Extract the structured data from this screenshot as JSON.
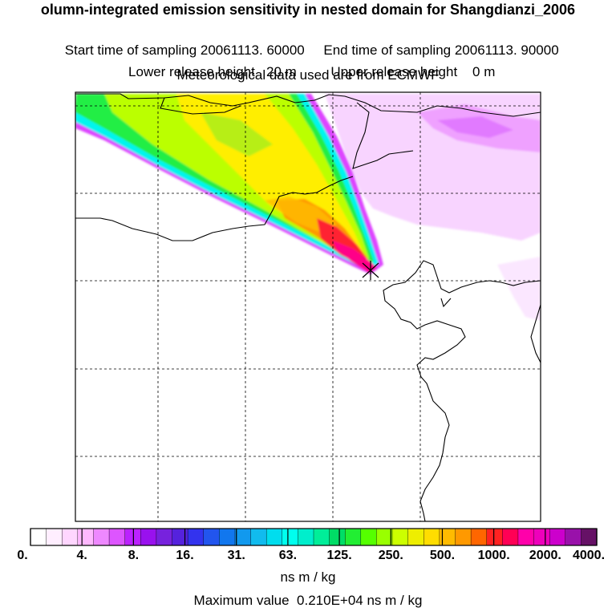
{
  "title": "olumn-integrated emission sensitivity in nested domain for Shangdianzi_2006",
  "header": {
    "start_label": "Start time of sampling 20061113. 60000",
    "end_label": "End time of sampling 20061113. 90000",
    "lower_release": "Lower release height   20 m",
    "upper_release": "Upper release height    0 m",
    "met_data": "Meteorological data used are from ECMWF"
  },
  "colorbar": {
    "tick_labels": [
      "0.",
      "4.",
      "8.",
      "16.",
      "31.",
      "63.",
      "125.",
      "250.",
      "500.",
      "1000.",
      "2000.",
      "4000."
    ],
    "colors": [
      "#ffffff",
      "#ffeeff",
      "#ffd6ff",
      "#ffb8ff",
      "#ee88ff",
      "#dd55ff",
      "#bb22ff",
      "#9911ee",
      "#7722dd",
      "#5522dd",
      "#3333ee",
      "#2255ee",
      "#1177ee",
      "#1199ee",
      "#11bbee",
      "#00ddee",
      "#00ffee",
      "#00eecc",
      "#00ee99",
      "#00dd66",
      "#22ee33",
      "#55ff00",
      "#99ff00",
      "#ccff00",
      "#eeee00",
      "#ffdd00",
      "#ffbb00",
      "#ff9900",
      "#ff6600",
      "#ff2222",
      "#ff0055",
      "#ff00aa",
      "#ee00bb",
      "#cc00cc",
      "#9911aa",
      "#661166"
    ],
    "units": "ns m / kg"
  },
  "max_value": "Maximum value  0.210E+04 ns m / kg",
  "plume_colors": {
    "lavender": "#f7ccff",
    "magenta_edge": "#dd44ff",
    "cyan": "#00f5ee",
    "green": "#22ee44",
    "yellowgreen": "#bbff00",
    "yellow": "#ffee00",
    "orange": "#ff9900",
    "red": "#ff2233",
    "hotpink": "#ff0088"
  },
  "receptor_marker": "x-marker"
}
